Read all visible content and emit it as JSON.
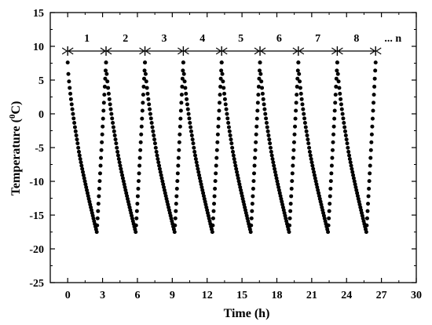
{
  "chart_data": {
    "type": "scatter",
    "title": "",
    "xlabel": "Time (h)",
    "ylabel_main": "Temperature (",
    "ylabel_sup": "0",
    "ylabel_unit": "C)",
    "xlim": [
      -1.5,
      30
    ],
    "ylim": [
      -25,
      15
    ],
    "xticks": [
      0,
      3,
      6,
      9,
      12,
      15,
      18,
      21,
      24,
      27,
      30
    ],
    "yticks": [
      -25,
      -20,
      -15,
      -10,
      -5,
      0,
      5,
      10,
      15
    ],
    "grid": false,
    "legend": "none",
    "marker_color": "#000000",
    "cycle_labels": [
      "1",
      "2",
      "3",
      "4",
      "5",
      "6",
      "7",
      "8",
      "... n"
    ],
    "cycle_boundaries": [
      0,
      3.3,
      6.65,
      9.95,
      13.25,
      16.55,
      19.85,
      23.2,
      26.5
    ],
    "cycle_arrow_y": 9.3,
    "cycles": [
      {
        "start": 0.0,
        "min_time": 2.5,
        "end": 3.3
      },
      {
        "start": 3.3,
        "min_time": 5.85,
        "end": 6.65
      },
      {
        "start": 6.65,
        "min_time": 9.2,
        "end": 9.95
      },
      {
        "start": 9.95,
        "min_time": 12.45,
        "end": 13.25
      },
      {
        "start": 13.25,
        "min_time": 15.75,
        "end": 16.55
      },
      {
        "start": 16.55,
        "min_time": 19.05,
        "end": 19.85
      },
      {
        "start": 19.85,
        "min_time": 22.4,
        "end": 23.2
      },
      {
        "start": 23.2,
        "min_time": 25.7,
        "end": 26.5
      }
    ],
    "max_temperature": 7.6,
    "min_temperature": -17.5
  }
}
